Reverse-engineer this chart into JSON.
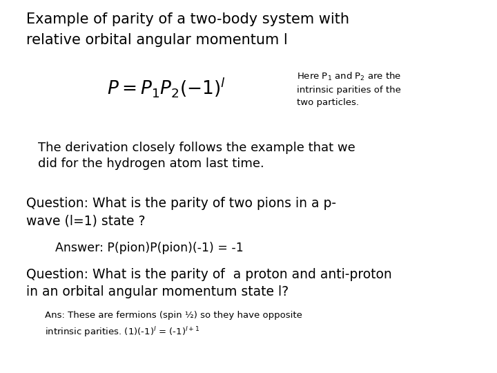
{
  "bg_color": "#ffffff",
  "title_line1": "Example of parity of a two-body system with",
  "title_line2": "relative orbital angular momentum l",
  "formula": "$P = P_1P_2(-1)^l$",
  "annotation_text": "Here P$_1$ and P$_2$ are the\nintrinsic parities of the\ntwo particles.",
  "deriv_line1": "The derivation closely follows the example that we",
  "deriv_line2": "did for the hydrogen atom last time.",
  "q1_line1": "Question: What is the parity of two pions in a p-",
  "q1_line2": "wave (l=1) state ?",
  "answer1": "Answer: P(pion)P(pion)(-1) = -1",
  "q2_line1": "Question: What is the parity of  a proton and anti-proton",
  "q2_line2": "in an orbital angular momentum state l?",
  "ans2_line1": "Ans: These are fermions (spin ½) so they have opposite",
  "ans2_line2": "intrinsic parities. (1)(-1)$^l$ = (-1)$^{l+1}$"
}
